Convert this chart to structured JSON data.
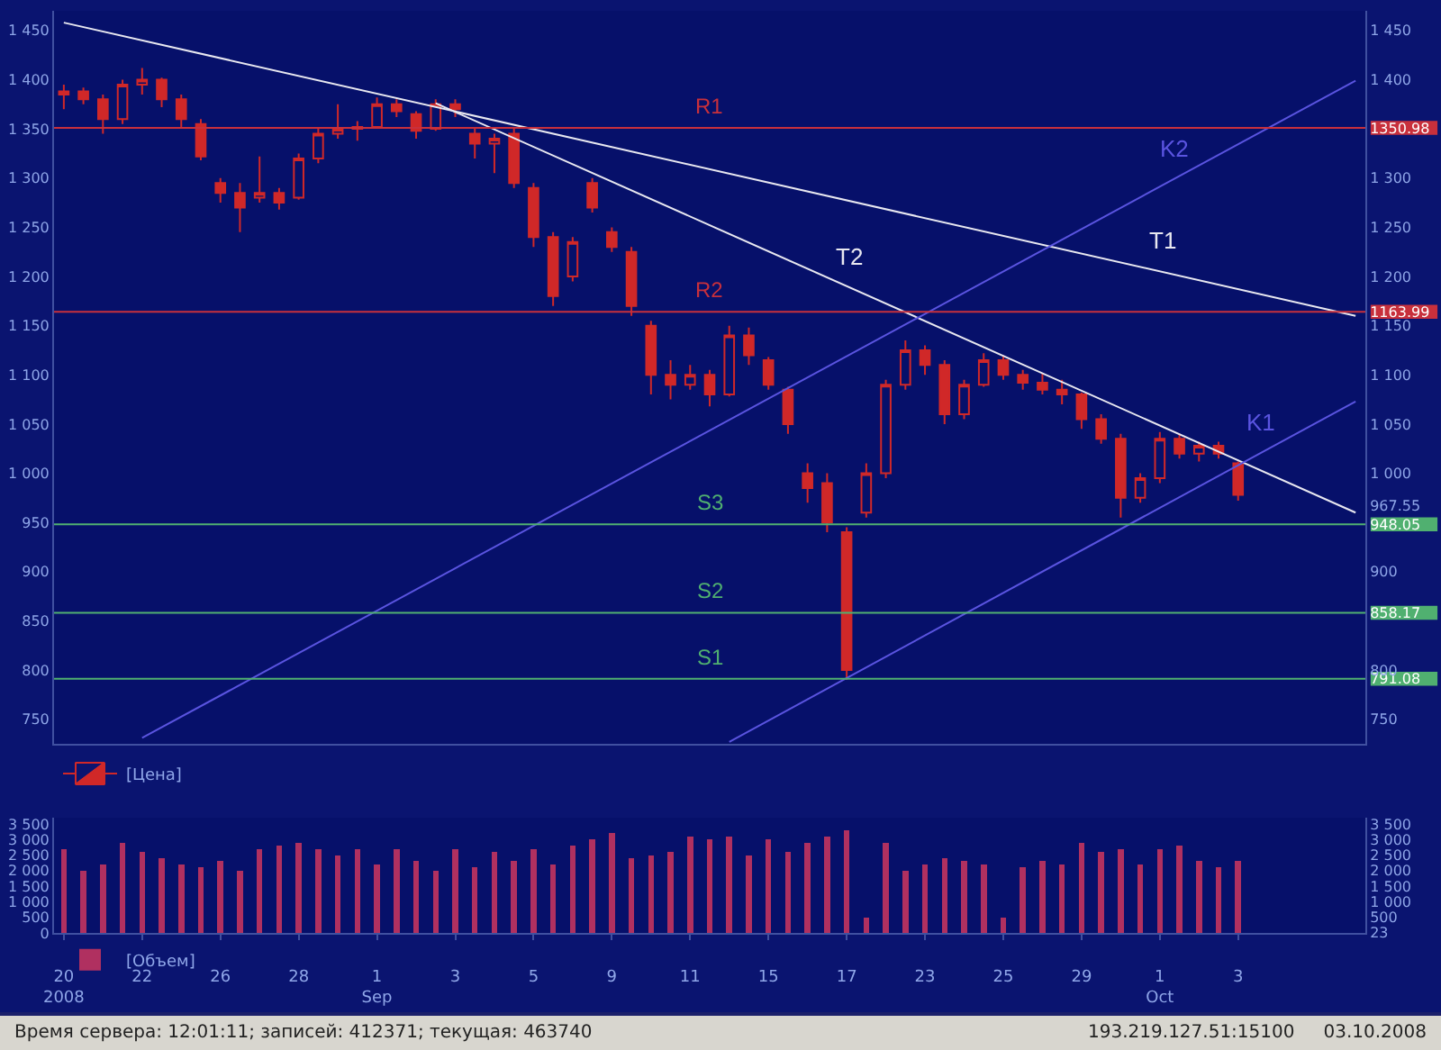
{
  "chart_data": [
    {
      "type": "candlestick",
      "ylim": [
        725,
        1470
      ],
      "tick_labels": "y",
      "legend": "bottom left",
      "grid": false,
      "yticks": [
        {
          "value": 750,
          "label": "750"
        },
        {
          "value": 800,
          "label": "800"
        },
        {
          "value": 850,
          "label": "850"
        },
        {
          "value": 900,
          "label": "900"
        },
        {
          "value": 950,
          "label": "950"
        },
        {
          "value": 1000,
          "label": "1 000"
        },
        {
          "value": 1050,
          "label": "1 050"
        },
        {
          "value": 1100,
          "label": "1 100"
        },
        {
          "value": 1150,
          "label": "1 150"
        },
        {
          "value": 1200,
          "label": "1 200"
        },
        {
          "value": 1250,
          "label": "1 250"
        },
        {
          "value": 1300,
          "label": "1 300"
        },
        {
          "value": 1350,
          "label": "1 350"
        },
        {
          "value": 1400,
          "label": "1 400"
        },
        {
          "value": 1450,
          "label": "1 450"
        }
      ],
      "y2lim": [
        725,
        1470
      ],
      "y2ticks": [
        {
          "value": 750,
          "label": "750"
        },
        {
          "value": 791.08,
          "label": "791.08"
        },
        {
          "value": 800,
          "label": "800"
        },
        {
          "value": 858.17,
          "label": "858.17"
        },
        {
          "value": 900,
          "label": "900"
        },
        {
          "value": 948.05,
          "label": "948.05"
        },
        {
          "value": 967.55,
          "label": "967.55"
        },
        {
          "value": 1000,
          "label": "1 000"
        },
        {
          "value": 1050,
          "label": "1 050"
        },
        {
          "value": 1100,
          "label": "1 100"
        },
        {
          "value": 1150,
          "label": "1 150"
        },
        {
          "value": 1163.99,
          "label": "1163.99"
        },
        {
          "value": 1200,
          "label": "1 200"
        },
        {
          "value": 1250,
          "label": "1 250"
        },
        {
          "value": 1300,
          "label": "1 300"
        },
        {
          "value": 1350.98,
          "label": "1350.98"
        },
        {
          "value": 1400,
          "label": "1 400"
        },
        {
          "value": 1450,
          "label": "1 450"
        }
      ],
      "series": [
        {
          "type": "line",
          "name": "T1",
          "color": "#e8e8f0",
          "values": [
            1458,
            null,
            null,
            null,
            null,
            null,
            null,
            null,
            null,
            null,
            null,
            null,
            null,
            null,
            null,
            null,
            null,
            null,
            null,
            null,
            null,
            null,
            null,
            null,
            null,
            null,
            null,
            null,
            null,
            null,
            null,
            null,
            null,
            null,
            null,
            null,
            null,
            null,
            null,
            null,
            null,
            null,
            null,
            null,
            null,
            null,
            null,
            null,
            null,
            null,
            null,
            null,
            null,
            null,
            null,
            null,
            null,
            null,
            null,
            null,
            null,
            null,
            null,
            null,
            null,
            null,
            1160
          ]
        },
        {
          "type": "line",
          "name": "T2",
          "color": "#e8e8f0",
          "values": [
            null,
            null,
            null,
            null,
            null,
            null,
            null,
            null,
            null,
            null,
            null,
            null,
            null,
            null,
            null,
            null,
            null,
            null,
            null,
            1376,
            null,
            null,
            null,
            null,
            null,
            null,
            null,
            null,
            null,
            null,
            null,
            null,
            null,
            null,
            null,
            null,
            null,
            null,
            null,
            null,
            null,
            null,
            null,
            null,
            null,
            null,
            null,
            null,
            null,
            null,
            null,
            null,
            null,
            null,
            null,
            null,
            null,
            null,
            null,
            null,
            null,
            null,
            null,
            null,
            null,
            null,
            960
          ]
        },
        {
          "type": "line",
          "name": "K1",
          "color": "#5a54e0",
          "values": [
            null,
            null,
            null,
            null,
            null,
            null,
            null,
            null,
            null,
            null,
            null,
            null,
            null,
            null,
            null,
            null,
            null,
            null,
            null,
            null,
            null,
            null,
            null,
            null,
            null,
            null,
            null,
            null,
            null,
            null,
            null,
            null,
            null,
            null,
            727,
            null,
            null,
            null,
            null,
            null,
            null,
            null,
            null,
            null,
            null,
            null,
            null,
            null,
            null,
            null,
            null,
            null,
            null,
            null,
            null,
            null,
            null,
            null,
            null,
            null,
            null,
            null,
            null,
            null,
            null,
            null,
            1073
          ]
        },
        {
          "type": "line",
          "name": "K2",
          "color": "#5a54e0",
          "values": [
            null,
            null,
            null,
            null,
            731,
            null,
            null,
            null,
            null,
            null,
            null,
            null,
            null,
            null,
            null,
            null,
            null,
            null,
            null,
            null,
            null,
            null,
            null,
            null,
            null,
            null,
            null,
            null,
            null,
            null,
            null,
            null,
            null,
            null,
            null,
            null,
            null,
            null,
            null,
            null,
            null,
            null,
            null,
            null,
            null,
            null,
            null,
            null,
            null,
            null,
            null,
            null,
            null,
            null,
            null,
            null,
            null,
            null,
            null,
            null,
            null,
            null,
            null,
            null,
            null,
            null,
            1399
          ]
        },
        {
          "name": "[Цена]",
          "color": "#d02828",
          "ohlc": [
            [
              1385,
              1395,
              1370,
              1388
            ],
            [
              1388,
              1392,
              1375,
              1380
            ],
            [
              1380,
              1385,
              1345,
              1360
            ],
            [
              1360,
              1400,
              1355,
              1395
            ],
            [
              1395,
              1412,
              1385,
              1400
            ],
            [
              1400,
              1402,
              1372,
              1380
            ],
            [
              1380,
              1385,
              1352,
              1360
            ],
            [
              1355,
              1360,
              1318,
              1322
            ],
            [
              1295,
              1300,
              1275,
              1285
            ],
            [
              1285,
              1295,
              1245,
              1270
            ],
            [
              1280,
              1322,
              1275,
              1285
            ],
            [
              1285,
              1290,
              1268,
              1275
            ],
            [
              1280,
              1325,
              1278,
              1320
            ],
            [
              1320,
              1350,
              1315,
              1345
            ],
            [
              1345,
              1375,
              1340,
              1350
            ],
            [
              1350,
              1358,
              1338,
              1352
            ],
            [
              1352,
              1382,
              1350,
              1375
            ],
            [
              1375,
              1380,
              1362,
              1368
            ],
            [
              1365,
              1368,
              1340,
              1348
            ],
            [
              1350,
              1380,
              1348,
              1375
            ],
            [
              1375,
              1380,
              1362,
              1370
            ],
            [
              1345,
              1350,
              1320,
              1335
            ],
            [
              1335,
              1345,
              1305,
              1340
            ],
            [
              1345,
              1350,
              1290,
              1295
            ],
            [
              1290,
              1295,
              1230,
              1240
            ],
            [
              1240,
              1245,
              1170,
              1180
            ],
            [
              1200,
              1240,
              1195,
              1235
            ],
            [
              1295,
              1300,
              1265,
              1270
            ],
            [
              1245,
              1250,
              1225,
              1230
            ],
            [
              1225,
              1230,
              1160,
              1170
            ],
            [
              1150,
              1155,
              1080,
              1100
            ],
            [
              1100,
              1115,
              1075,
              1090
            ],
            [
              1090,
              1110,
              1085,
              1100
            ],
            [
              1100,
              1105,
              1068,
              1080
            ],
            [
              1080,
              1150,
              1078,
              1140
            ],
            [
              1140,
              1148,
              1110,
              1120
            ],
            [
              1115,
              1118,
              1085,
              1090
            ],
            [
              1085,
              1088,
              1040,
              1050
            ],
            [
              1000,
              1010,
              970,
              985
            ],
            [
              990,
              1000,
              940,
              950
            ],
            [
              940,
              945,
              790,
              800
            ],
            [
              960,
              1010,
              955,
              1000
            ],
            [
              1000,
              1095,
              995,
              1090
            ],
            [
              1090,
              1135,
              1085,
              1125
            ],
            [
              1125,
              1130,
              1100,
              1110
            ],
            [
              1110,
              1115,
              1050,
              1060
            ],
            [
              1060,
              1095,
              1055,
              1090
            ],
            [
              1090,
              1122,
              1088,
              1115
            ],
            [
              1115,
              1120,
              1095,
              1100
            ],
            [
              1100,
              1105,
              1085,
              1092
            ],
            [
              1092,
              1102,
              1080,
              1085
            ],
            [
              1085,
              1095,
              1070,
              1080
            ],
            [
              1080,
              1082,
              1045,
              1055
            ],
            [
              1055,
              1060,
              1030,
              1035
            ],
            [
              1035,
              1040,
              955,
              975
            ],
            [
              975,
              1000,
              970,
              995
            ],
            [
              995,
              1042,
              990,
              1035
            ],
            [
              1035,
              1040,
              1015,
              1020
            ],
            [
              1020,
              1032,
              1012,
              1028
            ],
            [
              1028,
              1032,
              1015,
              1020
            ],
            [
              1010,
              1012,
              972,
              978
            ],
            null,
            null,
            null,
            null,
            null,
            null
          ]
        }
      ],
      "ref_lines": [
        {
          "axis": "y2",
          "value": 1350.98,
          "label": "R1",
          "color": "#c8303c"
        },
        {
          "axis": "y2",
          "value": 1163.99,
          "label": "R2",
          "color": "#c8303c"
        },
        {
          "axis": "y2",
          "value": 948.05,
          "label": "S3",
          "color": "#50b070"
        },
        {
          "axis": "y2",
          "value": 858.17,
          "label": "S2",
          "color": "#50b070"
        },
        {
          "axis": "y2",
          "value": 791.08,
          "label": "S1",
          "color": "#50b070"
        }
      ]
    },
    {
      "type": "bar",
      "ylim": [
        0,
        3700
      ],
      "legend": "bottom left",
      "grid": false,
      "categories": [
        "20\n2008",
        null,
        null,
        null,
        "22",
        null,
        null,
        null,
        "26",
        null,
        null,
        null,
        "28",
        null,
        null,
        null,
        "1\nSep",
        null,
        null,
        null,
        "3",
        null,
        null,
        null,
        "5",
        null,
        null,
        null,
        "9",
        null,
        null,
        null,
        "11",
        null,
        null,
        null,
        "15",
        null,
        null,
        null,
        "17",
        null,
        null,
        null,
        "23",
        null,
        null,
        null,
        "25",
        null,
        null,
        null,
        "29",
        null,
        null,
        null,
        "1\nOct",
        null,
        null,
        null,
        "3",
        null,
        null,
        null,
        null,
        null,
        null
      ],
      "yticks": [
        0,
        {
          "value": 500,
          "label": "500"
        },
        {
          "value": 1000,
          "label": "1 000"
        },
        {
          "value": 1500,
          "label": "1 500"
        },
        {
          "value": 2000,
          "label": "2 000"
        },
        {
          "value": 2500,
          "label": "2 500"
        },
        {
          "value": 3000,
          "label": "3 000"
        },
        {
          "value": 3500,
          "label": "3 500"
        }
      ],
      "y2lim": [
        0,
        3700
      ],
      "y2ticks": [
        23,
        {
          "value": 500,
          "label": "500"
        },
        {
          "value": 1000,
          "label": "1 000"
        },
        {
          "value": 1500,
          "label": "1 500"
        },
        {
          "value": 2000,
          "label": "2 000"
        },
        {
          "value": 2500,
          "label": "2 500"
        },
        {
          "value": 3000,
          "label": "3 000"
        },
        {
          "value": 3500,
          "label": "3 500"
        }
      ],
      "series": [
        {
          "name": "[Объем]",
          "color": "#b03060",
          "values": [
            2700,
            2000,
            2200,
            2900,
            2600,
            2400,
            2200,
            2100,
            2300,
            2000,
            2700,
            2800,
            2900,
            2700,
            2500,
            2700,
            2200,
            2700,
            2300,
            2000,
            2700,
            2100,
            2600,
            2300,
            2700,
            2200,
            2800,
            3000,
            3200,
            2400,
            2500,
            2600,
            3100,
            3000,
            3100,
            2500,
            3000,
            2600,
            2900,
            3100,
            3300,
            500,
            2900,
            2000,
            2200,
            2400,
            2300,
            2200,
            500,
            2100,
            2300,
            2200,
            2900,
            2600,
            2700,
            2200,
            2700,
            2800,
            2300,
            2100,
            2300,
            null,
            null,
            null,
            null,
            null,
            null
          ]
        }
      ],
      "annotations": [
        "Время сервера: 12:01:11; записей: 412371; текущая: 463740",
        "193.219.127.51:15100",
        "03.10.2008"
      ]
    }
  ]
}
